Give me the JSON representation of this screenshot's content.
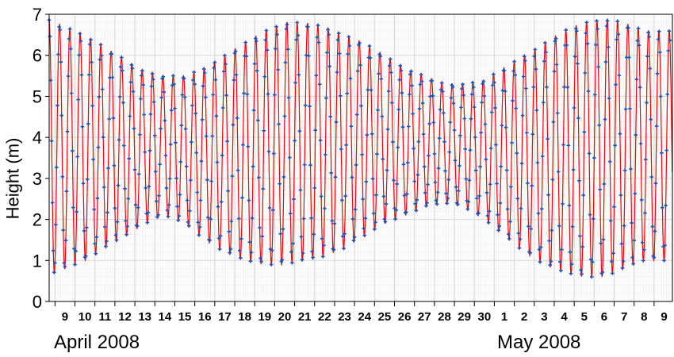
{
  "chart_data": {
    "type": "line",
    "ylabel": "Height (m)",
    "ylim": [
      0,
      7
    ],
    "yticks": [
      "0",
      "1",
      "2",
      "3",
      "4",
      "5",
      "6",
      "7"
    ],
    "x_day_labels": [
      "9",
      "10",
      "11",
      "12",
      "13",
      "14",
      "15",
      "16",
      "17",
      "18",
      "19",
      "20",
      "21",
      "22",
      "23",
      "24",
      "25",
      "26",
      "27",
      "28",
      "29",
      "30",
      "1",
      "2",
      "3",
      "4",
      "5",
      "6",
      "7",
      "8",
      "9"
    ],
    "month_labels": [
      "April 2008",
      "May 2008"
    ],
    "xrange": [
      "2008-04-08T17:00",
      "2008-05-09T22:00"
    ],
    "tide_cycles_per_day": 1.9324,
    "grid": true,
    "colors": {
      "observed_line": "#ff0000",
      "predicted_markers": "#2a4fa8",
      "grid": "#d9d9d9",
      "axis": "#000000"
    },
    "series": [
      {
        "style": "line",
        "high_water_by_day": [
          6.9,
          6.7,
          6.5,
          6.2,
          5.9,
          5.6,
          5.5,
          5.5,
          5.7,
          6.0,
          6.3,
          6.6,
          6.8,
          6.8,
          6.7,
          6.5,
          6.3,
          6.0,
          5.7,
          5.5,
          5.3,
          5.3,
          5.4,
          5.7,
          6.0,
          6.3,
          6.6,
          6.8,
          6.9,
          6.8,
          6.6
        ],
        "low_water_by_day": [
          0.6,
          0.8,
          1.0,
          1.3,
          1.6,
          1.9,
          2.1,
          1.9,
          1.5,
          1.2,
          1.0,
          0.9,
          0.9,
          1.0,
          1.1,
          1.3,
          1.6,
          1.9,
          2.1,
          2.3,
          2.4,
          2.3,
          2.0,
          1.6,
          1.2,
          0.9,
          0.7,
          0.6,
          0.6,
          0.8,
          1.0
        ]
      },
      {
        "style": "markers",
        "high_water_by_day": [
          6.9,
          6.7,
          6.5,
          6.2,
          5.9,
          5.6,
          5.5,
          5.5,
          5.7,
          6.0,
          6.3,
          6.6,
          6.8,
          6.8,
          6.7,
          6.5,
          6.3,
          6.0,
          5.7,
          5.5,
          5.3,
          5.3,
          5.4,
          5.7,
          6.0,
          6.3,
          6.6,
          6.8,
          6.9,
          6.8,
          6.6
        ],
        "low_water_by_day": [
          0.6,
          0.8,
          1.0,
          1.3,
          1.6,
          1.9,
          2.1,
          1.9,
          1.5,
          1.2,
          1.0,
          0.9,
          0.9,
          1.0,
          1.1,
          1.3,
          1.6,
          1.9,
          2.1,
          2.3,
          2.4,
          2.3,
          2.0,
          1.6,
          1.2,
          0.9,
          0.7,
          0.6,
          0.6,
          0.8,
          1.0
        ]
      }
    ]
  }
}
